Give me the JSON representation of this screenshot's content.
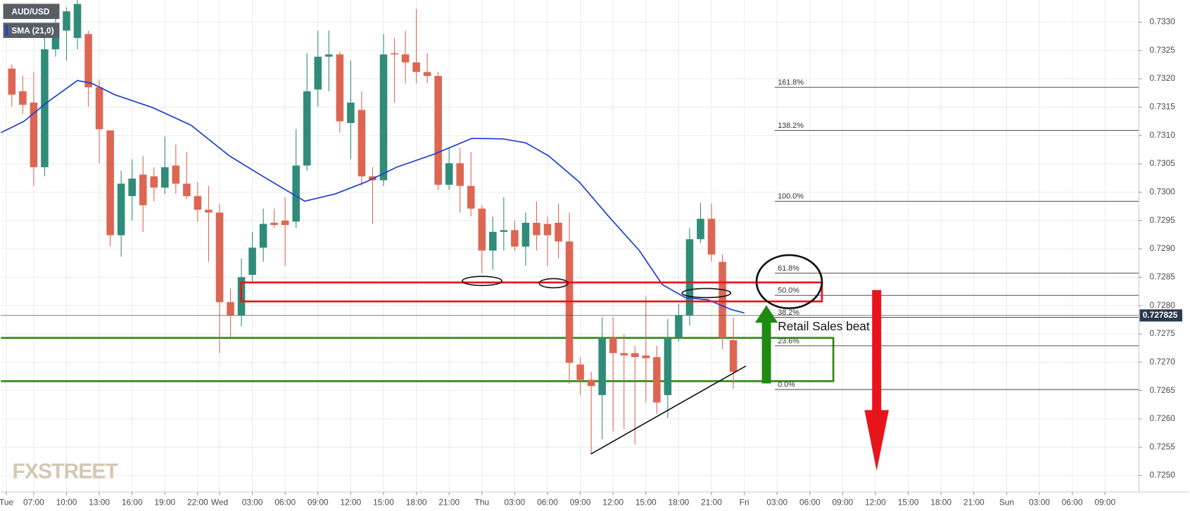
{
  "chart_data": {
    "type": "candlestick",
    "symbol": "AUD/USD",
    "indicator": "SMA (21,0)",
    "watermark": "FXSTREET",
    "annotation": "Retail Sales beat",
    "up_color": "#2f8c78",
    "down_color": "#dd6652",
    "grid": true,
    "xlim": [
      4,
      108.1
    ],
    "ylim": [
      0.72471,
      0.73339
    ],
    "xticks": [
      {
        "value": 4.5,
        "label": "Tue"
      },
      {
        "value": 7,
        "label": "07:00"
      },
      {
        "value": 10,
        "label": "10:00"
      },
      {
        "value": 13,
        "label": "13:00"
      },
      {
        "value": 16,
        "label": "16:00"
      },
      {
        "value": 19,
        "label": "19:00"
      },
      {
        "value": 22,
        "label": "22:00"
      },
      {
        "value": 24,
        "label": "Wed"
      },
      {
        "value": 27,
        "label": "03:00"
      },
      {
        "value": 30,
        "label": "06:00"
      },
      {
        "value": 33,
        "label": "09:00"
      },
      {
        "value": 36,
        "label": "12:00"
      },
      {
        "value": 39,
        "label": "15:00"
      },
      {
        "value": 42,
        "label": "18:00"
      },
      {
        "value": 45,
        "label": "21:00"
      },
      {
        "value": 48,
        "label": "Thu"
      },
      {
        "value": 51,
        "label": "03:00"
      },
      {
        "value": 54,
        "label": "06:00"
      },
      {
        "value": 57,
        "label": "09:00"
      },
      {
        "value": 60,
        "label": "12:00"
      },
      {
        "value": 63,
        "label": "15:00"
      },
      {
        "value": 66,
        "label": "18:00"
      },
      {
        "value": 69,
        "label": "21:00"
      },
      {
        "value": 72,
        "label": "Fri"
      },
      {
        "value": 75,
        "label": "03:00"
      },
      {
        "value": 78,
        "label": "06:00"
      },
      {
        "value": 81,
        "label": "09:00"
      },
      {
        "value": 84,
        "label": "12:00"
      },
      {
        "value": 87,
        "label": "15:00"
      },
      {
        "value": 90,
        "label": "18:00"
      },
      {
        "value": 93,
        "label": "21:00"
      },
      {
        "value": 96,
        "label": "Sun"
      },
      {
        "value": 99,
        "label": "03:00"
      },
      {
        "value": 102,
        "label": "06:00"
      },
      {
        "value": 105,
        "label": "09:00"
      }
    ],
    "yticks": [
      {
        "value": 0.725,
        "label": "0.7250"
      },
      0.7255,
      {
        "value": 0.726,
        "label": "0.7260"
      },
      0.7265,
      {
        "value": 0.727,
        "label": "0.7270"
      },
      0.7275,
      {
        "value": 0.728,
        "label": "0.7280"
      },
      0.7285,
      {
        "value": 0.729,
        "label": "0.7290"
      },
      0.7295,
      {
        "value": 0.73,
        "label": "0.7300"
      },
      0.7305,
      {
        "value": 0.731,
        "label": "0.7310"
      },
      0.7315,
      {
        "value": 0.732,
        "label": "0.7320"
      },
      0.7325,
      {
        "value": 0.733,
        "label": "0.7330"
      }
    ],
    "x": [
      5,
      6,
      7,
      8,
      9,
      10,
      11,
      12,
      13,
      14,
      15,
      16,
      17,
      18,
      19,
      20,
      21,
      22,
      23,
      24,
      25,
      26,
      27,
      28,
      29,
      30,
      31,
      32,
      33,
      34,
      35,
      36,
      37,
      38,
      39,
      40,
      41,
      42,
      43,
      44,
      45,
      46,
      47,
      48,
      49,
      50,
      51,
      52,
      53,
      54,
      55,
      56,
      57,
      58,
      59,
      60,
      61,
      62,
      63,
      64,
      65,
      66,
      67,
      68,
      69,
      70,
      71
    ],
    "open": [
      0.73218,
      0.73178,
      0.73158,
      0.73044,
      0.73252,
      0.73285,
      0.73272,
      0.73279,
      0.73185,
      0.73109,
      0.72924,
      0.72993,
      0.73031,
      0.73028,
      0.73008,
      0.73047,
      0.73015,
      0.72993,
      0.72969,
      0.72964,
      0.72806,
      0.72783,
      0.72854,
      0.72902,
      0.72946,
      0.7295,
      0.72948,
      0.73047,
      0.73181,
      0.73239,
      0.73243,
      0.73122,
      0.73145,
      0.73028,
      0.73021,
      0.73245,
      0.73243,
      0.73229,
      0.73212,
      0.73205,
      0.73013,
      0.73051,
      0.73011,
      0.72971,
      0.72897,
      0.7293,
      0.72933,
      0.72904,
      0.72946,
      0.72944,
      0.72946,
      0.72913,
      0.72696,
      0.72669,
      0.72642,
      0.72743,
      0.72716,
      0.72716,
      0.72712,
      0.72709,
      0.72642,
      0.72743,
      0.72783,
      0.72917,
      0.72953,
      0.72877,
      0.72739
    ],
    "high": [
      0.73225,
      0.73205,
      0.73212,
      0.73279,
      0.73319,
      0.73326,
      0.73339,
      0.73285,
      0.73198,
      0.73109,
      0.73038,
      0.73058,
      0.73064,
      0.73044,
      0.73098,
      0.73084,
      0.73071,
      0.73018,
      0.73011,
      0.7298,
      0.7283,
      0.72883,
      0.7293,
      0.72971,
      0.72971,
      0.72991,
      0.73111,
      0.73245,
      0.73285,
      0.73285,
      0.73248,
      0.73232,
      0.73178,
      0.73044,
      0.73279,
      0.73272,
      0.73285,
      0.73323,
      0.73245,
      0.73212,
      0.73078,
      0.73078,
      0.73071,
      0.72977,
      0.72957,
      0.72991,
      0.7295,
      0.72964,
      0.72984,
      0.72957,
      0.7298,
      0.72964,
      0.72709,
      0.72683,
      0.72779,
      0.72779,
      0.72749,
      0.72729,
      0.72816,
      0.72729,
      0.72776,
      0.72803,
      0.72937,
      0.72981,
      0.7298,
      0.7289,
      0.72779
    ],
    "low": [
      0.73151,
      0.73138,
      0.73011,
      0.73028,
      0.73239,
      0.73232,
      0.73252,
      0.73151,
      0.73051,
      0.72904,
      0.72886,
      0.7295,
      0.7293,
      0.72984,
      0.72997,
      0.72997,
      0.72988,
      0.72948,
      0.72877,
      0.72716,
      0.72743,
      0.72763,
      0.72843,
      0.72877,
      0.72937,
      0.7287,
      0.72937,
      0.73038,
      0.73151,
      0.73178,
      0.73105,
      0.73058,
      0.73011,
      0.72944,
      0.73011,
      0.73158,
      0.73192,
      0.73192,
      0.73192,
      0.73004,
      0.73004,
      0.72964,
      0.72957,
      0.72857,
      0.72863,
      0.72897,
      0.72897,
      0.7287,
      0.72897,
      0.7287,
      0.72883,
      0.72662,
      0.72642,
      0.72538,
      0.72564,
      0.72578,
      0.72582,
      0.72555,
      0.72629,
      0.72609,
      0.72602,
      0.72736,
      0.72765,
      0.7291,
      0.72877,
      0.72723,
      0.72653
    ],
    "close": [
      0.73172,
      0.73154,
      0.73044,
      0.73252,
      0.73285,
      0.73319,
      0.73332,
      0.73185,
      0.73111,
      0.72924,
      0.73015,
      0.73024,
      0.72977,
      0.73008,
      0.73044,
      0.73015,
      0.72993,
      0.72969,
      0.72964,
      0.72806,
      0.72783,
      0.7285,
      0.72902,
      0.72944,
      0.72942,
      0.72942,
      0.73047,
      0.73178,
      0.73239,
      0.73243,
      0.73125,
      0.73158,
      0.73028,
      0.73021,
      0.73243,
      0.73243,
      0.73229,
      0.73212,
      0.73205,
      0.73013,
      0.73051,
      0.73011,
      0.72971,
      0.72897,
      0.7293,
      0.72933,
      0.72904,
      0.72946,
      0.72924,
      0.72924,
      0.72913,
      0.72699,
      0.72669,
      0.72658,
      0.72743,
      0.72716,
      0.72712,
      0.72709,
      0.72707,
      0.72629,
      0.72743,
      0.72783,
      0.72917,
      0.72953,
      0.7289,
      0.72743,
      0.72683
    ],
    "sma": {
      "name": "SMA (21,0)",
      "color": "#1f3fd1",
      "x": [
        4.0,
        6.1,
        8.2,
        11.0,
        12.3,
        14.4,
        17.9,
        21.4,
        24.9,
        28.3,
        31.8,
        34.6,
        37.4,
        40.2,
        43.6,
        47.1,
        49.9,
        52.0,
        54.1,
        56.9,
        59.6,
        62.4,
        64.5,
        66.6,
        68.7,
        70.8,
        72.0
      ],
      "values": [
        0.73105,
        0.73125,
        0.73158,
        0.73197,
        0.73192,
        0.73172,
        0.73149,
        0.73118,
        0.73064,
        0.73024,
        0.72984,
        0.72997,
        0.73018,
        0.73044,
        0.73067,
        0.73095,
        0.73094,
        0.73087,
        0.73064,
        0.73018,
        0.72957,
        0.72897,
        0.72837,
        0.72814,
        0.7281,
        0.72793,
        0.72787
      ]
    },
    "last_price": 0.727825,
    "fib": [
      {
        "label": "161.8%",
        "value": 0.73185
      },
      {
        "label": "138.2%",
        "value": 0.73109
      },
      {
        "label": "100.0%",
        "value": 0.72984
      },
      {
        "label": "61.8%",
        "value": 0.72857
      },
      {
        "label": "50.0%",
        "value": 0.72818
      },
      {
        "label": "38.2%",
        "value": 0.72779
      },
      {
        "label": "23.6%",
        "value": 0.72729
      },
      {
        "label": "0.0%",
        "value": 0.72652
      }
    ]
  }
}
